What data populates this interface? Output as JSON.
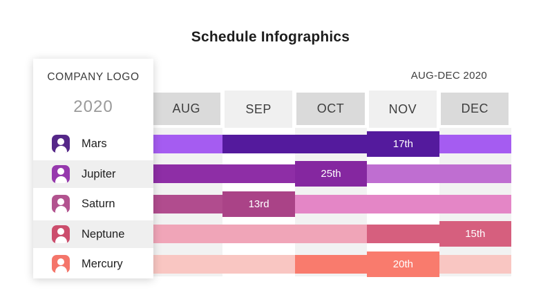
{
  "title": "Schedule Infographics",
  "period_label": "AUG-DEC 2020",
  "logo": {
    "company": "COMPANY LOGO",
    "year": "2020"
  },
  "months": [
    "AUG",
    "SEP",
    "OCT",
    "NOV",
    "DEC"
  ],
  "rows": [
    {
      "name": "Mars",
      "milestone_label": "17th",
      "active_start_month": "SEP",
      "active_end_month": "NOV",
      "milestone_month": "NOV",
      "colors": {
        "icon": "#552788",
        "base": "#a55cf1",
        "active": "#541a9d",
        "milestone": "#541a9d"
      }
    },
    {
      "name": "Jupiter",
      "milestone_label": "25th",
      "active_start_month": "AUG",
      "active_end_month": "OCT",
      "milestone_month": "OCT",
      "colors": {
        "icon": "#9639ad",
        "base": "#bf6ed1",
        "active": "#8e2ea6",
        "milestone": "#8527a0"
      }
    },
    {
      "name": "Saturn",
      "milestone_label": "13rd",
      "active_start_month": "AUG",
      "active_end_month": "SEP",
      "milestone_month": "SEP",
      "colors": {
        "icon": "#b2538f",
        "active": "#b14c8e",
        "base": "#e486c6",
        "milestone": "#aa4387"
      }
    },
    {
      "name": "Neptune",
      "milestone_label": "15th",
      "active_start_month": "NOV",
      "active_end_month": "DEC",
      "milestone_month": "DEC",
      "colors": {
        "icon": "#cc4e6d",
        "base": "#f0a5b8",
        "active": "#d65f7e",
        "milestone": "#d65f7e"
      }
    },
    {
      "name": "Mercury",
      "milestone_label": "20th",
      "active_start_month": "OCT",
      "active_end_month": "NOV",
      "milestone_month": "NOV",
      "colors": {
        "icon": "#f4756a",
        "base": "#f9c6c2",
        "active": "#f97b6d",
        "milestone": "#f97b6d"
      }
    }
  ],
  "theme": {
    "header_cell_dark": "#dadada",
    "header_cell_light": "#f0f0f0",
    "column_stripe": "#f2f2f2",
    "row_band": "#efefef"
  },
  "chart_data": {
    "type": "bar",
    "subtype": "gantt-schedule",
    "title": "Schedule Infographics",
    "period": "AUG-DEC 2020",
    "categories": [
      "AUG",
      "SEP",
      "OCT",
      "NOV",
      "DEC"
    ],
    "legend_position": "none",
    "grid": "column-stripes",
    "rows": [
      {
        "name": "Mars",
        "base_span": [
          "AUG",
          "DEC"
        ],
        "active_span": [
          "SEP",
          "NOV"
        ],
        "milestone": {
          "month": "NOV",
          "label": "17th"
        }
      },
      {
        "name": "Jupiter",
        "base_span": [
          "AUG",
          "DEC"
        ],
        "active_span": [
          "AUG",
          "OCT"
        ],
        "milestone": {
          "month": "OCT",
          "label": "25th"
        }
      },
      {
        "name": "Saturn",
        "base_span": [
          "AUG",
          "DEC"
        ],
        "active_span": [
          "AUG",
          "SEP"
        ],
        "milestone": {
          "month": "SEP",
          "label": "13rd"
        }
      },
      {
        "name": "Neptune",
        "base_span": [
          "AUG",
          "DEC"
        ],
        "active_span": [
          "NOV",
          "DEC"
        ],
        "milestone": {
          "month": "DEC",
          "label": "15th"
        }
      },
      {
        "name": "Mercury",
        "base_span": [
          "AUG",
          "DEC"
        ],
        "active_span": [
          "OCT",
          "NOV"
        ],
        "milestone": {
          "month": "NOV",
          "label": "20th"
        }
      }
    ]
  }
}
